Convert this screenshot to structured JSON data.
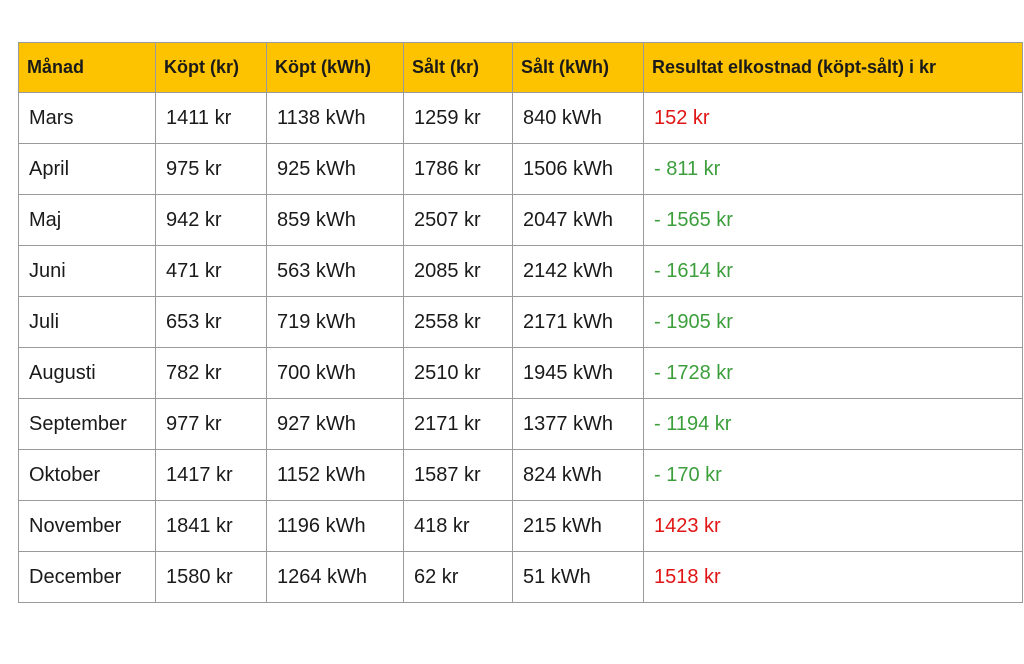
{
  "table": {
    "headers": [
      "Månad",
      "Köpt (kr)",
      "Köpt (kWh)",
      "Sålt (kr)",
      "Sålt (kWh)",
      "Resultat elkostnad (köpt-sålt) i kr"
    ],
    "rows": [
      [
        "Mars",
        "1411 kr",
        "1138 kWh",
        "1259 kr",
        "840 kWh",
        "152 kr"
      ],
      [
        "April",
        "975 kr",
        "925 kWh",
        "1786 kr",
        "1506 kWh",
        "- 811 kr"
      ],
      [
        "Maj",
        "942 kr",
        "859 kWh",
        "2507 kr",
        "2047 kWh",
        "- 1565 kr"
      ],
      [
        "Juni",
        "471 kr",
        "563 kWh",
        "2085 kr",
        "2142 kWh",
        "- 1614 kr"
      ],
      [
        "Juli",
        "653 kr",
        "719 kWh",
        "2558 kr",
        "2171 kWh",
        "- 1905 kr"
      ],
      [
        "Augusti",
        "782 kr",
        "700 kWh",
        "2510 kr",
        "1945 kWh",
        "- 1728 kr"
      ],
      [
        "September",
        "977 kr",
        "927 kWh",
        "2171 kr",
        "1377 kWh",
        "- 1194 kr"
      ],
      [
        "Oktober",
        "1417 kr",
        "1152 kWh",
        "1587 kr",
        "824 kWh",
        "- 170 kr"
      ],
      [
        "November",
        "1841 kr",
        "1196 kWh",
        "418 kr",
        "215 kWh",
        "1423 kr"
      ],
      [
        "December",
        "1580 kr",
        "1264 kWh",
        "62 kr",
        "51 kWh",
        "1518 kr"
      ]
    ]
  }
}
